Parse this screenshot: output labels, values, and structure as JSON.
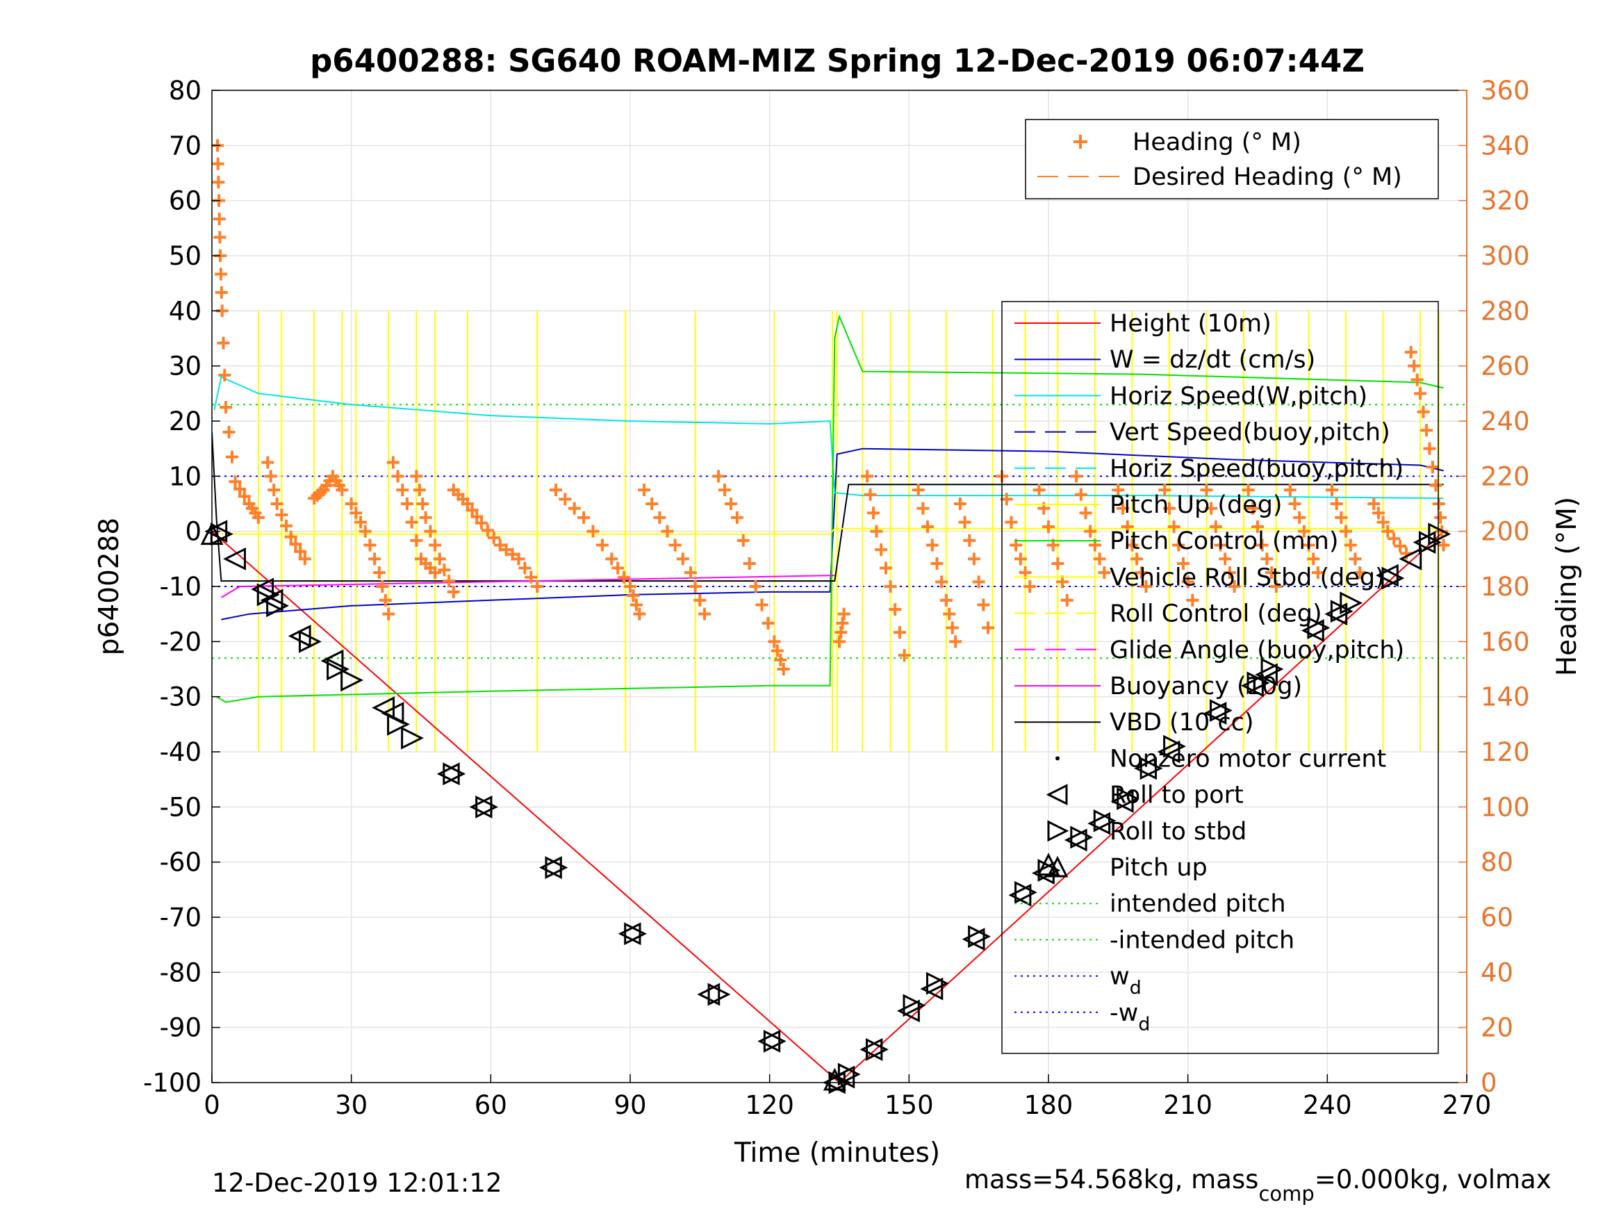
{
  "chart_data": {
    "type": "line",
    "title": "p6400288: SG640 ROAM-MIZ Spring 12-Dec-2019 06:07:44Z",
    "xlabel": "Time (minutes)",
    "ylabel": "p6400288",
    "ylabel_right": "Heading (°M)",
    "xlim": [
      0,
      270
    ],
    "ylim": [
      -100,
      80
    ],
    "ylim_right": [
      0,
      360
    ],
    "x_ticks": [
      "0",
      "30",
      "60",
      "90",
      "120",
      "150",
      "180",
      "210",
      "240",
      "270"
    ],
    "y_ticks": [
      "80",
      "70",
      "60",
      "50",
      "40",
      "30",
      "20",
      "10",
      "0",
      "-10",
      "-20",
      "-30",
      "-40",
      "-50",
      "-60",
      "-70",
      "-80",
      "-90",
      "-100"
    ],
    "y_ticks_right": [
      "360",
      "340",
      "320",
      "300",
      "280",
      "260",
      "240",
      "220",
      "200",
      "180",
      "160",
      "140",
      "120",
      "100",
      "80",
      "60",
      "40",
      "20",
      "0"
    ],
    "grid": true,
    "colors": {
      "height": "#ff0000",
      "w": "#0000cd",
      "horiz_speed": "#00e5e5",
      "pitch": "#00e000",
      "roll": "#ffff00",
      "heading": "#ff7f27",
      "buoyancy": "#ff00ff",
      "vbd": "#000000",
      "wd": "#0000ff",
      "right_axis": "#e8742c"
    },
    "legend_top": [
      {
        "label": "Heading (° M)",
        "style": "marker-plus"
      },
      {
        "label": "Desired Heading (° M)",
        "style": "dashed"
      }
    ],
    "legend_main": [
      {
        "label": "Height (10m)",
        "style": "solid",
        "color": "#ff0000"
      },
      {
        "label": "W = dz/dt (cm/s)",
        "style": "solid",
        "color": "#0000cd"
      },
      {
        "label": "Horiz Speed(W,pitch)",
        "style": "solid",
        "color": "#00e5e5"
      },
      {
        "label": "Vert Speed(buoy,pitch)",
        "style": "dashed",
        "color": "#0000cd"
      },
      {
        "label": "Horiz Speed(buoy,pitch)",
        "style": "dashed",
        "color": "#00e5e5"
      },
      {
        "label": "Pitch Up (deg)",
        "style": "solid",
        "color": "#ffff00"
      },
      {
        "label": "Pitch Control (mm)",
        "style": "solid",
        "color": "#00e000"
      },
      {
        "label": "Vehicle Roll Stbd (deg)",
        "style": "solid",
        "color": "#ffff00"
      },
      {
        "label": "Roll Control (deg)",
        "style": "dashed",
        "color": "#ffff00"
      },
      {
        "label": "Glide Angle (buoy,pitch)",
        "style": "dashed",
        "color": "#ff00ff"
      },
      {
        "label": "Buoyancy (10g)",
        "style": "solid",
        "color": "#ff00ff"
      },
      {
        "label": "VBD (10 cc)",
        "style": "solid",
        "color": "#000000"
      },
      {
        "label": "Nonzero motor current",
        "style": "dot",
        "color": "#000000"
      },
      {
        "label": "Roll to port",
        "style": "tri-left",
        "color": "#000000"
      },
      {
        "label": "Roll to stbd",
        "style": "tri-right",
        "color": "#000000"
      },
      {
        "label": "Pitch up",
        "style": "tri-up",
        "color": "#000000"
      },
      {
        "label": "intended pitch",
        "style": "dotted",
        "color": "#00e000"
      },
      {
        "label": "-intended pitch",
        "style": "dotted",
        "color": "#00e000"
      },
      {
        "label": "w",
        "sub": "d",
        "style": "dotted",
        "color": "#0000ff"
      },
      {
        "label": "-w",
        "sub": "d",
        "style": "dotted",
        "color": "#0000ff"
      }
    ],
    "series": [
      {
        "name": "Height (10m)",
        "x": [
          0,
          135,
          265
        ],
        "y": [
          0,
          -100,
          0
        ]
      },
      {
        "name": "W = dz/dt (cm/s)",
        "x": [
          2,
          8,
          30,
          60,
          90,
          120,
          133,
          134.5,
          140,
          180,
          220,
          260,
          265
        ],
        "y": [
          -16,
          -15,
          -13.5,
          -12.5,
          -11.5,
          -11,
          -11,
          14,
          15,
          14.5,
          13,
          12,
          11
        ]
      },
      {
        "name": "Horiz Speed(W,pitch)",
        "x": [
          0.5,
          2,
          10,
          30,
          60,
          90,
          120,
          133,
          134,
          140,
          200,
          265
        ],
        "y": [
          22,
          28,
          25,
          23,
          21,
          20,
          19.5,
          20,
          7,
          6.5,
          6.5,
          6
        ]
      },
      {
        "name": "Pitch Control (mm)",
        "x": [
          1,
          3,
          10,
          60,
          120,
          133,
          134,
          135,
          140,
          200,
          260,
          265
        ],
        "y": [
          -30,
          -31,
          -30,
          -29,
          -28,
          -28,
          35,
          39,
          29,
          28.5,
          27,
          26
        ]
      },
      {
        "name": "VBD (10 cc)",
        "x": [
          0,
          1,
          2,
          133,
          134,
          137,
          265
        ],
        "y": [
          18,
          2,
          -9,
          -9,
          -9,
          8.5,
          8.5
        ]
      },
      {
        "name": "Buoyancy (10g)",
        "x": [
          2,
          6,
          134
        ],
        "y": [
          -12,
          -10,
          -8
        ]
      },
      {
        "name": "Pitch Up (deg)",
        "x": [
          2,
          133,
          134,
          265
        ],
        "y": [
          -0.5,
          -0.5,
          0.5,
          0.5
        ]
      }
    ],
    "reference_lines": {
      "intended_pitch": 23,
      "minus_intended_pitch": -23,
      "w_d": 10,
      "minus_w_d": -10
    },
    "heading_segments": [
      [
        [
          1.2,
          340
        ],
        [
          1.5,
          320
        ],
        [
          1.8,
          300
        ],
        [
          2.2,
          280
        ],
        [
          3,
          245
        ],
        [
          5,
          218
        ],
        [
          8,
          210
        ],
        [
          10,
          205
        ]
      ],
      [
        [
          12,
          225
        ],
        [
          14,
          210
        ],
        [
          17,
          198
        ],
        [
          20,
          190
        ]
      ],
      [
        [
          22,
          212
        ],
        [
          24,
          215
        ],
        [
          26,
          220
        ],
        [
          28,
          215
        ]
      ],
      [
        [
          30,
          210
        ],
        [
          33,
          200
        ],
        [
          36,
          185
        ],
        [
          38,
          170
        ]
      ],
      [
        [
          39,
          225
        ],
        [
          42,
          210
        ],
        [
          45,
          190
        ],
        [
          48,
          185
        ]
      ],
      [
        [
          44,
          220
        ],
        [
          46,
          205
        ],
        [
          49,
          190
        ],
        [
          52,
          178
        ]
      ],
      [
        [
          52,
          215
        ],
        [
          55,
          210
        ],
        [
          58,
          203
        ],
        [
          62,
          195
        ],
        [
          66,
          190
        ],
        [
          70,
          180
        ]
      ],
      [
        [
          74,
          215
        ],
        [
          80,
          205
        ],
        [
          86,
          190
        ],
        [
          90,
          180
        ],
        [
          92,
          170
        ]
      ],
      [
        [
          93,
          215
        ],
        [
          98,
          200
        ],
        [
          103,
          185
        ],
        [
          106,
          170
        ]
      ],
      [
        [
          109,
          220
        ],
        [
          113,
          205
        ],
        [
          117,
          180
        ],
        [
          121,
          160
        ],
        [
          123,
          150
        ]
      ],
      [
        [
          135,
          160
        ],
        [
          136,
          170
        ]
      ],
      [
        [
          141,
          220
        ],
        [
          143,
          200
        ],
        [
          146,
          180
        ],
        [
          149,
          155
        ]
      ],
      [
        [
          152,
          215
        ],
        [
          155,
          195
        ],
        [
          158,
          175
        ],
        [
          160,
          160
        ]
      ],
      [
        [
          161,
          210
        ],
        [
          164,
          190
        ],
        [
          167,
          165
        ]
      ],
      [
        [
          170,
          220
        ],
        [
          173,
          195
        ],
        [
          176,
          180
        ]
      ],
      [
        [
          178,
          215
        ],
        [
          181,
          195
        ],
        [
          184,
          175
        ]
      ],
      [
        [
          186,
          220
        ],
        [
          189,
          200
        ],
        [
          192,
          185
        ]
      ],
      [
        [
          195,
          215
        ],
        [
          198,
          195
        ],
        [
          201,
          180
        ]
      ],
      [
        [
          205,
          215
        ],
        [
          208,
          195
        ],
        [
          211,
          175
        ]
      ],
      [
        [
          214,
          215
        ],
        [
          217,
          195
        ],
        [
          220,
          180
        ]
      ],
      [
        [
          223,
          215
        ],
        [
          226,
          195
        ],
        [
          229,
          180
        ]
      ],
      [
        [
          232,
          215
        ],
        [
          235,
          200
        ],
        [
          238,
          185
        ]
      ],
      [
        [
          241,
          215
        ],
        [
          244,
          200
        ],
        [
          247,
          185
        ]
      ],
      [
        [
          250,
          210
        ],
        [
          253,
          200
        ],
        [
          257,
          192
        ]
      ],
      [
        [
          258,
          265
        ],
        [
          260,
          250
        ],
        [
          262,
          230
        ],
        [
          264,
          210
        ],
        [
          265,
          195
        ]
      ]
    ],
    "event_markers": {
      "tri_left": [
        [
          1,
          0
        ],
        [
          5,
          -5
        ],
        [
          11,
          -10.5
        ],
        [
          13,
          -12.5
        ],
        [
          19,
          -19
        ],
        [
          26,
          -23.5
        ],
        [
          37,
          -32
        ],
        [
          39,
          -33
        ],
        [
          51,
          -44
        ],
        [
          58,
          -50
        ],
        [
          73,
          -61
        ],
        [
          90,
          -73
        ],
        [
          107,
          -84
        ],
        [
          120,
          -92.5
        ],
        [
          134,
          -100
        ],
        [
          136,
          -99
        ],
        [
          142,
          -94
        ],
        [
          150,
          -87
        ],
        [
          155,
          -83
        ],
        [
          164,
          -74
        ],
        [
          174,
          -66
        ],
        [
          179,
          -62
        ],
        [
          186,
          -56
        ],
        [
          191,
          -53
        ],
        [
          196,
          -49
        ],
        [
          201,
          -43
        ],
        [
          206,
          -40
        ],
        [
          216,
          -33
        ],
        [
          224,
          -28
        ],
        [
          227,
          -26
        ],
        [
          237,
          -18
        ],
        [
          242,
          -15
        ],
        [
          253,
          -8
        ],
        [
          258,
          -5
        ],
        [
          261,
          -2
        ]
      ],
      "tri_right": [
        [
          2,
          -0.5
        ],
        [
          12,
          -11.5
        ],
        [
          14,
          -13.5
        ],
        [
          21,
          -20
        ],
        [
          27,
          -25
        ],
        [
          30,
          -27
        ],
        [
          40,
          -35
        ],
        [
          43,
          -37.5
        ],
        [
          52,
          -44
        ],
        [
          59,
          -50
        ],
        [
          74,
          -61
        ],
        [
          91,
          -73
        ],
        [
          109,
          -84
        ],
        [
          121,
          -92.5
        ],
        [
          135,
          -100
        ],
        [
          137,
          -98.5
        ],
        [
          143,
          -94
        ],
        [
          151,
          -86
        ],
        [
          156,
          -82
        ],
        [
          165,
          -73.5
        ],
        [
          175,
          -65.5
        ],
        [
          180,
          -61.5
        ],
        [
          187,
          -55.5
        ],
        [
          192,
          -52.5
        ],
        [
          197,
          -48.5
        ],
        [
          202,
          -43
        ],
        [
          207,
          -39
        ],
        [
          217,
          -32.5
        ],
        [
          225,
          -27.5
        ],
        [
          228,
          -25
        ],
        [
          238,
          -17.5
        ],
        [
          243,
          -14.5
        ],
        [
          245,
          -13
        ],
        [
          254,
          -8.5
        ],
        [
          262,
          -2
        ],
        [
          264,
          -0.5
        ]
      ],
      "tri_up": [
        [
          0,
          -0.5
        ],
        [
          134,
          -99.5
        ],
        [
          180,
          -60.5
        ]
      ]
    }
  },
  "footer": {
    "timestamp": "12-Dec-2019 12:01:12",
    "mass_text": "mass=54.568kg, mass",
    "mass_sub": "comp",
    "mass_rest": "=0.000kg, volmax"
  }
}
